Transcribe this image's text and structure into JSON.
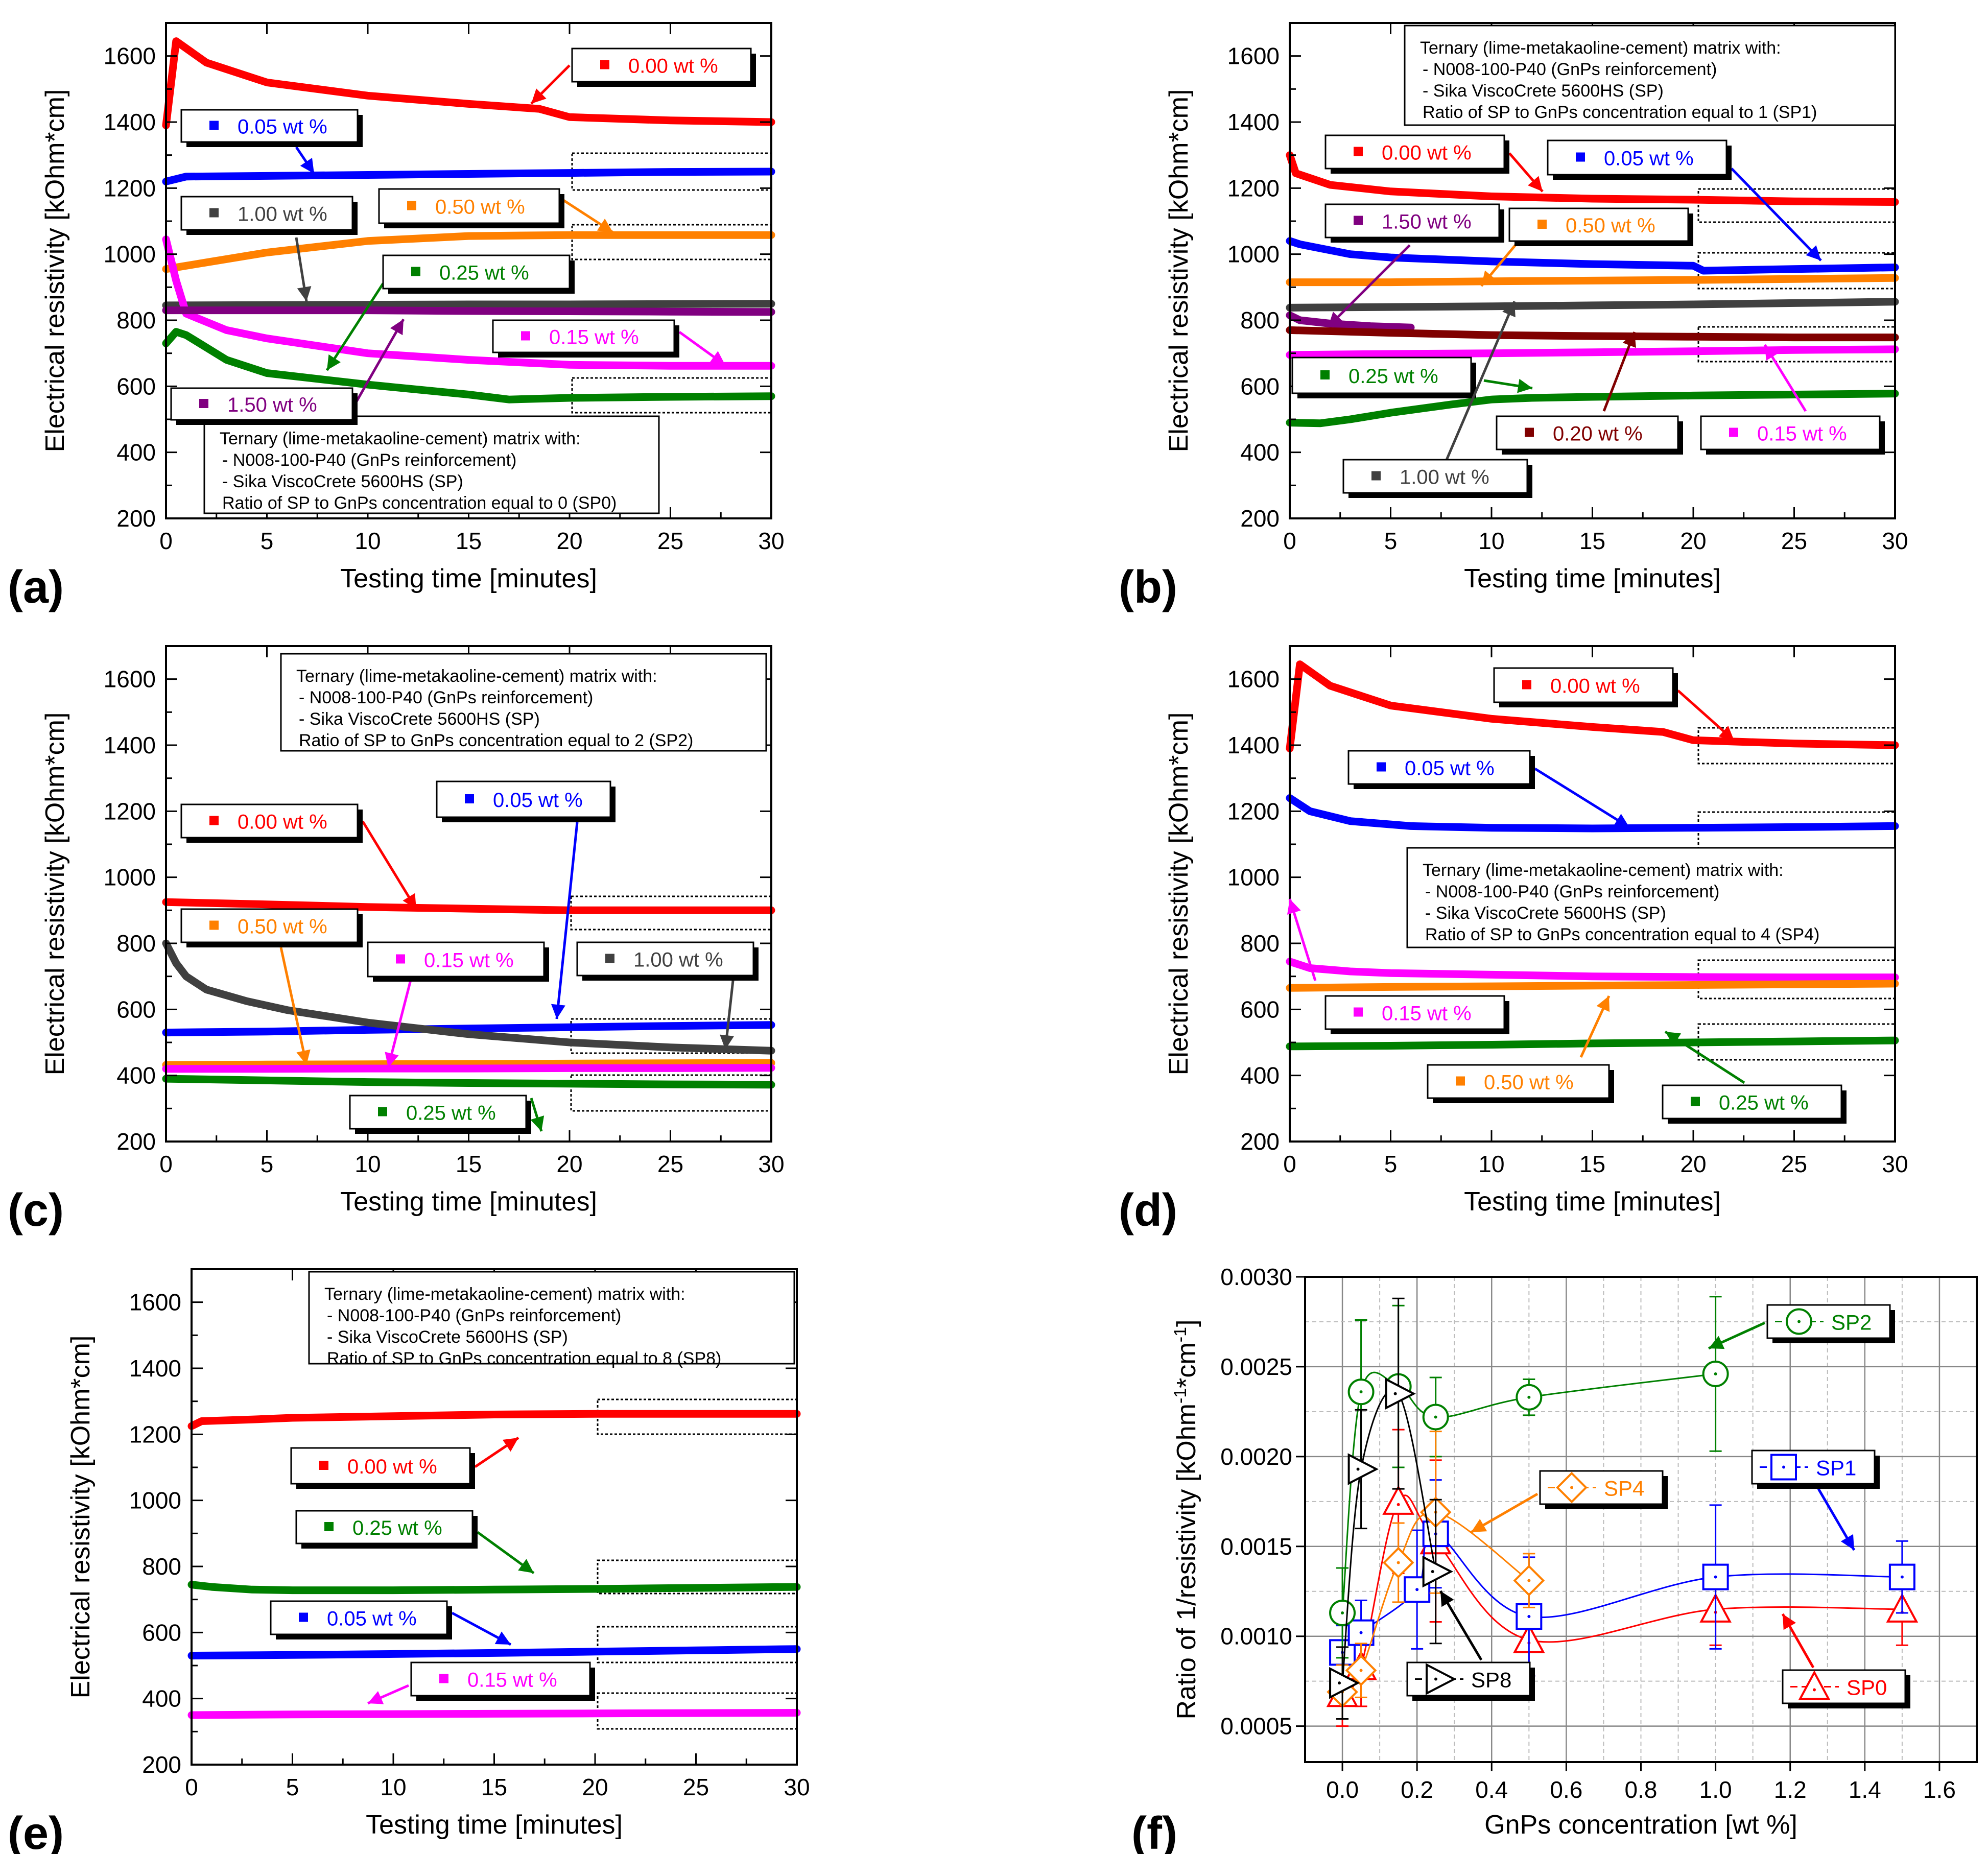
{
  "common": {
    "colors": {
      "red": "#ff0000",
      "blue": "#0000ff",
      "orange": "#ff8000",
      "green": "#008000",
      "magenta": "#ff00ff",
      "purple": "#800080",
      "dark_gray": "#404040",
      "maroon": "#800000",
      "black": "#000000"
    }
  },
  "chart_data": [
    {
      "panel_label": "(a)",
      "type": "line",
      "xlabel": "Testing time [minutes]",
      "ylabel": "Electrical resistivity [kOhm*cm]",
      "xlim": [
        0,
        30
      ],
      "ylim": [
        200,
        1700
      ],
      "xticks": [
        0,
        5,
        10,
        15,
        20,
        25,
        30
      ],
      "yticks": [
        200,
        400,
        600,
        800,
        1000,
        1200,
        1400,
        1600
      ],
      "matrix_info": [
        "Ternary (lime-metakaoline-cement) matrix with:",
        "- N008-100-P40 (GnPs reinforcement)",
        "- Sika ViscoCrete 5600HS (SP)",
        "Ratio of SP to GnPs concentration equal to 0 (SP0)"
      ],
      "series": [
        {
          "name": "0.00 wt %",
          "color": "#ff0000",
          "x": [
            0,
            0.5,
            2,
            5,
            10,
            15,
            18.5,
            20,
            25,
            30
          ],
          "y": [
            1390,
            1645,
            1580,
            1520,
            1480,
            1455,
            1440,
            1415,
            1405,
            1400
          ]
        },
        {
          "name": "0.05 wt %",
          "color": "#0000ff",
          "x": [
            0,
            1,
            5,
            10,
            15,
            20,
            25,
            30
          ],
          "y": [
            1220,
            1235,
            1237,
            1240,
            1243,
            1246,
            1249,
            1250
          ]
        },
        {
          "name": "0.50 wt %",
          "color": "#ff8000",
          "x": [
            0,
            2,
            5,
            10,
            15,
            20,
            25,
            30
          ],
          "y": [
            955,
            975,
            1005,
            1040,
            1055,
            1058,
            1058,
            1058
          ]
        },
        {
          "name": "1.00 wt %",
          "color": "#404040",
          "x": [
            0,
            5,
            10,
            15,
            20,
            25,
            30
          ],
          "y": [
            845,
            846,
            847,
            848,
            848,
            849,
            850
          ]
        },
        {
          "name": "0.25 wt %",
          "color": "#008000",
          "x": [
            0,
            0.5,
            1,
            3,
            5,
            10,
            15,
            17,
            20,
            25,
            30
          ],
          "y": [
            730,
            765,
            755,
            680,
            640,
            605,
            575,
            560,
            565,
            568,
            570
          ]
        },
        {
          "name": "0.15 wt %",
          "color": "#ff00ff",
          "x": [
            0,
            0.5,
            1,
            3,
            5,
            10,
            15,
            20,
            25,
            30
          ],
          "y": [
            1045,
            920,
            820,
            770,
            745,
            700,
            680,
            665,
            662,
            662
          ]
        },
        {
          "name": "1.50 wt %",
          "color": "#800080",
          "x": [
            0,
            5,
            10,
            15,
            20,
            25,
            30
          ],
          "y": [
            830,
            830,
            830,
            828,
            827,
            826,
            825
          ]
        }
      ]
    },
    {
      "panel_label": "(b)",
      "type": "line",
      "xlabel": "Testing time [minutes]",
      "ylabel": "Electrical resistivity [kOhm*cm]",
      "xlim": [
        0,
        30
      ],
      "ylim": [
        200,
        1700
      ],
      "xticks": [
        0,
        5,
        10,
        15,
        20,
        25,
        30
      ],
      "yticks": [
        200,
        400,
        600,
        800,
        1000,
        1200,
        1400,
        1600
      ],
      "matrix_info": [
        "Ternary (lime-metakaoline-cement) matrix with:",
        "- N008-100-P40 (GnPs reinforcement)",
        "- Sika ViscoCrete 5600HS (SP)",
        "Ratio of SP to GnPs concentration equal to 1 (SP1)"
      ],
      "series": [
        {
          "name": "0.00 wt %",
          "color": "#ff0000",
          "x": [
            0,
            0.3,
            2,
            5,
            10,
            15,
            20,
            25,
            30
          ],
          "y": [
            1300,
            1245,
            1210,
            1190,
            1175,
            1168,
            1165,
            1160,
            1158
          ]
        },
        {
          "name": "0.05 wt %",
          "color": "#0000ff",
          "x": [
            0,
            0.5,
            3,
            5,
            10,
            15,
            20,
            20.5,
            25,
            30
          ],
          "y": [
            1040,
            1030,
            1000,
            990,
            978,
            970,
            965,
            950,
            955,
            960
          ]
        },
        {
          "name": "0.50 wt %",
          "color": "#ff8000",
          "x": [
            0,
            5,
            10,
            15,
            20,
            25,
            30
          ],
          "y": [
            915,
            915,
            918,
            920,
            922,
            925,
            928
          ]
        },
        {
          "name": "1.00 wt %",
          "color": "#404040",
          "x": [
            0,
            5,
            10,
            15,
            20,
            25,
            30
          ],
          "y": [
            838,
            840,
            842,
            845,
            848,
            852,
            856
          ]
        },
        {
          "name": "1.50 wt %",
          "color": "#800080",
          "x": [
            0,
            0.5,
            2,
            4,
            6
          ],
          "y": [
            815,
            800,
            790,
            782,
            778
          ]
        },
        {
          "name": "0.20 wt %",
          "color": "#800000",
          "x": [
            0,
            5,
            10,
            15,
            20,
            25,
            30
          ],
          "y": [
            770,
            762,
            755,
            752,
            750,
            748,
            748
          ]
        },
        {
          "name": "0.15 wt %",
          "color": "#ff00ff",
          "x": [
            0,
            5,
            10,
            15,
            20,
            25,
            30
          ],
          "y": [
            695,
            698,
            700,
            703,
            706,
            710,
            712
          ]
        },
        {
          "name": "0.25 wt %",
          "color": "#008000",
          "x": [
            0,
            1.5,
            3,
            5,
            8,
            10,
            12,
            15,
            20,
            25,
            30
          ],
          "y": [
            490,
            488,
            500,
            520,
            545,
            560,
            565,
            568,
            572,
            575,
            578
          ]
        }
      ]
    },
    {
      "panel_label": "(c)",
      "type": "line",
      "xlabel": "Testing time [minutes]",
      "ylabel": "Electrical resistivity [kOhm*cm]",
      "xlim": [
        0,
        30
      ],
      "ylim": [
        200,
        1700
      ],
      "xticks": [
        0,
        5,
        10,
        15,
        20,
        25,
        30
      ],
      "yticks": [
        200,
        400,
        600,
        800,
        1000,
        1200,
        1400,
        1600
      ],
      "matrix_info": [
        "Ternary (lime-metakaoline-cement) matrix with:",
        "- N008-100-P40 (GnPs reinforcement)",
        "- Sika ViscoCrete 5600HS (SP)",
        "Ratio of SP to GnPs concentration equal to 2 (SP2)"
      ],
      "series": [
        {
          "name": "0.00 wt %",
          "color": "#ff0000",
          "x": [
            0,
            5,
            10,
            15,
            20,
            25,
            30
          ],
          "y": [
            925,
            918,
            910,
            905,
            900,
            900,
            900
          ]
        },
        {
          "name": "0.05 wt %",
          "color": "#0000ff",
          "x": [
            0,
            5,
            10,
            15,
            20,
            25,
            30
          ],
          "y": [
            530,
            533,
            538,
            542,
            546,
            550,
            553
          ]
        },
        {
          "name": "1.00 wt %",
          "color": "#404040",
          "x": [
            0,
            0.5,
            1,
            2,
            4,
            6,
            10,
            15,
            20,
            25,
            30
          ],
          "y": [
            800,
            740,
            700,
            660,
            625,
            598,
            560,
            525,
            500,
            485,
            475
          ]
        },
        {
          "name": "0.50 wt %",
          "color": "#ff8000",
          "x": [
            0,
            5,
            10,
            15,
            20,
            25,
            30
          ],
          "y": [
            432,
            433,
            434,
            435,
            436,
            437,
            438
          ]
        },
        {
          "name": "0.15 wt %",
          "color": "#ff00ff",
          "x": [
            0,
            5,
            10,
            15,
            20,
            25,
            30
          ],
          "y": [
            420,
            420,
            421,
            421,
            422,
            422,
            423
          ]
        },
        {
          "name": "0.25 wt %",
          "color": "#008000",
          "x": [
            0,
            5,
            10,
            15,
            20,
            25,
            30
          ],
          "y": [
            390,
            385,
            380,
            377,
            375,
            373,
            372
          ]
        }
      ]
    },
    {
      "panel_label": "(d)",
      "type": "line",
      "xlabel": "Testing time [minutes]",
      "ylabel": "Electrical resistivity [kOhm*cm]",
      "xlim": [
        0,
        30
      ],
      "ylim": [
        200,
        1700
      ],
      "xticks": [
        0,
        5,
        10,
        15,
        20,
        25,
        30
      ],
      "yticks": [
        200,
        400,
        600,
        800,
        1000,
        1200,
        1400,
        1600
      ],
      "matrix_info": [
        "Ternary (lime-metakaoline-cement) matrix with:",
        "- N008-100-P40 (GnPs reinforcement)",
        "- Sika ViscoCrete 5600HS (SP)",
        "Ratio of SP to GnPs concentration equal to 4 (SP4)"
      ],
      "series": [
        {
          "name": "0.00 wt %",
          "color": "#ff0000",
          "x": [
            0,
            0.5,
            2,
            5,
            10,
            15,
            18.5,
            20,
            25,
            30
          ],
          "y": [
            1390,
            1645,
            1580,
            1520,
            1480,
            1455,
            1440,
            1415,
            1405,
            1400
          ]
        },
        {
          "name": "0.05 wt %",
          "color": "#0000ff",
          "x": [
            0,
            1,
            3,
            6,
            10,
            15,
            20,
            25,
            30
          ],
          "y": [
            1240,
            1200,
            1170,
            1155,
            1150,
            1148,
            1150,
            1152,
            1155
          ]
        },
        {
          "name": "0.15 wt %",
          "color": "#ff00ff",
          "x": [
            0,
            1,
            3,
            5,
            10,
            15,
            20,
            25,
            30
          ],
          "y": [
            745,
            725,
            715,
            710,
            705,
            700,
            698,
            697,
            697
          ]
        },
        {
          "name": "0.50 wt %",
          "color": "#ff8000",
          "x": [
            0,
            5,
            10,
            15,
            20,
            25,
            30
          ],
          "y": [
            665,
            668,
            670,
            672,
            674,
            676,
            678
          ]
        },
        {
          "name": "0.25 wt %",
          "color": "#008000",
          "x": [
            0,
            5,
            10,
            15,
            20,
            25,
            30
          ],
          "y": [
            488,
            490,
            493,
            497,
            500,
            503,
            506
          ]
        }
      ]
    },
    {
      "panel_label": "(e)",
      "type": "line",
      "xlabel": "Testing time [minutes]",
      "ylabel": "Electrical resistivity [kOhm*cm]",
      "xlim": [
        0,
        30
      ],
      "ylim": [
        200,
        1700
      ],
      "xticks": [
        0,
        5,
        10,
        15,
        20,
        25,
        30
      ],
      "yticks": [
        200,
        400,
        600,
        800,
        1000,
        1200,
        1400,
        1600
      ],
      "matrix_info": [
        "Ternary (lime-metakaoline-cement) matrix with:",
        "- N008-100-P40 (GnPs reinforcement)",
        "- Sika ViscoCrete 5600HS (SP)",
        "Ratio of SP to GnPs concentration equal to 8 (SP8)"
      ],
      "series": [
        {
          "name": "0.00 wt %",
          "color": "#ff0000",
          "x": [
            0,
            0.5,
            3,
            5,
            10,
            15,
            20,
            25,
            30
          ],
          "y": [
            1225,
            1240,
            1245,
            1250,
            1255,
            1260,
            1262,
            1262,
            1262
          ]
        },
        {
          "name": "0.25 wt %",
          "color": "#008000",
          "x": [
            0,
            1,
            3,
            5,
            10,
            15,
            20,
            25,
            30
          ],
          "y": [
            745,
            738,
            730,
            728,
            728,
            730,
            732,
            735,
            738
          ]
        },
        {
          "name": "0.05 wt %",
          "color": "#0000ff",
          "x": [
            0,
            5,
            10,
            15,
            20,
            25,
            30
          ],
          "y": [
            530,
            532,
            535,
            538,
            542,
            546,
            550
          ]
        },
        {
          "name": "0.15 wt %",
          "color": "#ff00ff",
          "x": [
            0,
            5,
            10,
            15,
            20,
            25,
            30
          ],
          "y": [
            350,
            352,
            353,
            354,
            355,
            356,
            357
          ]
        }
      ]
    },
    {
      "panel_label": "(f)",
      "type": "scatter",
      "xlabel": "GnPs concentration [wt %]",
      "ylabel_main": "Ratio of 1/resistivity [kOhm",
      "ylabel_sup1": "-1",
      "ylabel_mid": "*cm",
      "ylabel_sup2": "-1",
      "ylabel_end": "]",
      "xlim": [
        -0.1,
        1.7
      ],
      "ylim": [
        0.0003,
        0.003
      ],
      "xticks": [
        "0.0",
        "0.2",
        "0.4",
        "0.6",
        "0.8",
        "1.0",
        "1.2",
        "1.4",
        "1.6"
      ],
      "yticks": [
        "0.0005",
        "0.0010",
        "0.0015",
        "0.0020",
        "0.0025",
        "0.0030"
      ],
      "grid": true,
      "series": [
        {
          "name": "SP0",
          "marker": "triangle",
          "color": "#ff0000",
          "x": [
            0,
            0.05,
            0.15,
            0.25,
            0.5,
            1.0,
            1.5
          ],
          "y": [
            0.00068,
            0.00083,
            0.00175,
            0.00153,
            0.00098,
            0.00115,
            0.00115
          ],
          "err": [
            0.00018,
            0.00022,
            0.0004,
            0.00045,
            0.0002,
            0.0002,
            0.0002
          ]
        },
        {
          "name": "SP1",
          "marker": "square",
          "color": "#0000ff",
          "x": [
            0,
            0.05,
            0.2,
            0.25,
            0.5,
            1.0,
            1.5
          ],
          "y": [
            0.00091,
            0.00102,
            0.00126,
            0.00157,
            0.00111,
            0.00133,
            0.00133
          ],
          "err": [
            0.00015,
            0.00018,
            0.00033,
            0.0003,
            0.00033,
            0.0004,
            0.0002
          ]
        },
        {
          "name": "SP2",
          "marker": "circle",
          "color": "#008000",
          "x": [
            0,
            0.05,
            0.15,
            0.25,
            0.5,
            1.0
          ],
          "y": [
            0.00113,
            0.00236,
            0.00239,
            0.00222,
            0.00233,
            0.00246
          ],
          "err": [
            0.00025,
            0.0004,
            0.00045,
            0.00022,
            0.0001,
            0.00043
          ]
        },
        {
          "name": "SP4",
          "marker": "diamond",
          "color": "#ff8000",
          "x": [
            0,
            0.05,
            0.15,
            0.25,
            0.5
          ],
          "y": [
            0.00069,
            0.00081,
            0.00141,
            0.00169,
            0.00131
          ],
          "err": [
            0.00015,
            0.00015,
            0.00022,
            0.00045,
            0.00015
          ]
        },
        {
          "name": "SP8",
          "marker": "triangle-right",
          "color": "#000000",
          "x": [
            0,
            0.05,
            0.15,
            0.25
          ],
          "y": [
            0.00074,
            0.00193,
            0.00235,
            0.00136
          ],
          "err": [
            0.0002,
            0.00033,
            0.00053,
            0.0004
          ]
        }
      ]
    }
  ]
}
